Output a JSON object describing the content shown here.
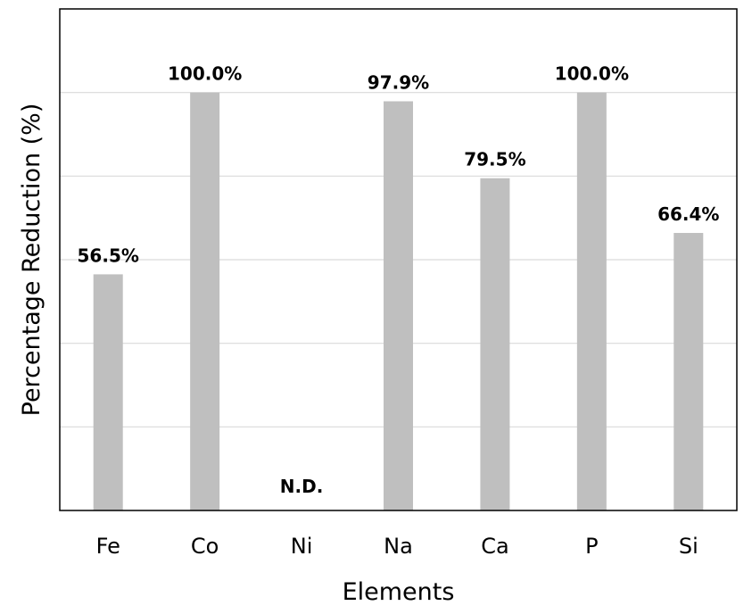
{
  "chart_data": {
    "type": "bar",
    "title": "",
    "xlabel": "Elements",
    "ylabel": "Percentage Reduction  (%)",
    "categories": [
      "Fe",
      "Co",
      "Ni",
      "Na",
      "Ca",
      "P",
      "Si"
    ],
    "values": [
      56.5,
      100.0,
      null,
      97.9,
      79.5,
      100.0,
      66.4
    ],
    "data_labels": [
      "56.5%",
      "100.0%",
      "N.D.",
      "97.9%",
      "79.5%",
      "100.0%",
      "66.4%"
    ],
    "ylim": [
      0,
      120
    ],
    "y_gridlines": [
      20,
      40,
      60,
      80,
      100
    ],
    "y_tick_labels_shown": false,
    "grid": true,
    "legend": "none",
    "colors": {
      "bar": "#bfbfbf",
      "grid": "#d9d9d9",
      "frame": "#000000"
    }
  }
}
